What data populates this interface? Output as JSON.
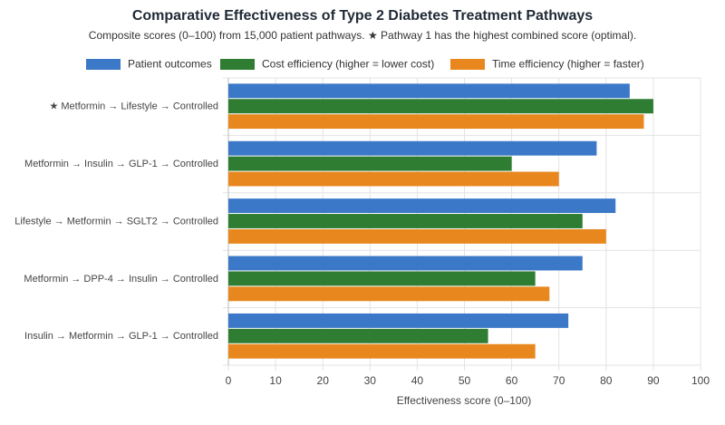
{
  "chart_data": {
    "type": "bar",
    "orientation": "horizontal",
    "title": "Comparative Effectiveness of Type 2 Diabetes Treatment Pathways",
    "subtitle": "Composite scores (0–100) from 15,000 patient pathways. ★ Pathway 1 has the highest combined score (optimal).",
    "x_label": "Effectiveness score (0–100)",
    "categories": [
      "★ Metformin → Lifestyle → Controlled",
      "Metformin → Insulin → GLP-1 → Controlled",
      "Lifestyle → Metformin → SGLT2 → Controlled",
      "Metformin → DPP-4 → Insulin → Controlled",
      "Insulin → Metformin → GLP-1 → Controlled"
    ],
    "series": [
      {
        "name": "Patient outcomes",
        "color": "#3b78c8",
        "values": [
          85,
          78,
          82,
          75,
          72
        ]
      },
      {
        "name": "Cost efficiency (higher = lower cost)",
        "color": "#2e7d32",
        "values": [
          90,
          60,
          75,
          65,
          55
        ]
      },
      {
        "name": "Time efficiency (higher = faster)",
        "color": "#e8871e",
        "values": [
          88,
          70,
          80,
          68,
          65
        ]
      }
    ],
    "xlim": [
      0,
      100
    ],
    "xticks": [
      0,
      10,
      20,
      30,
      40,
      50,
      60,
      70,
      80,
      90,
      100
    ],
    "grid": true,
    "legend": "top"
  }
}
